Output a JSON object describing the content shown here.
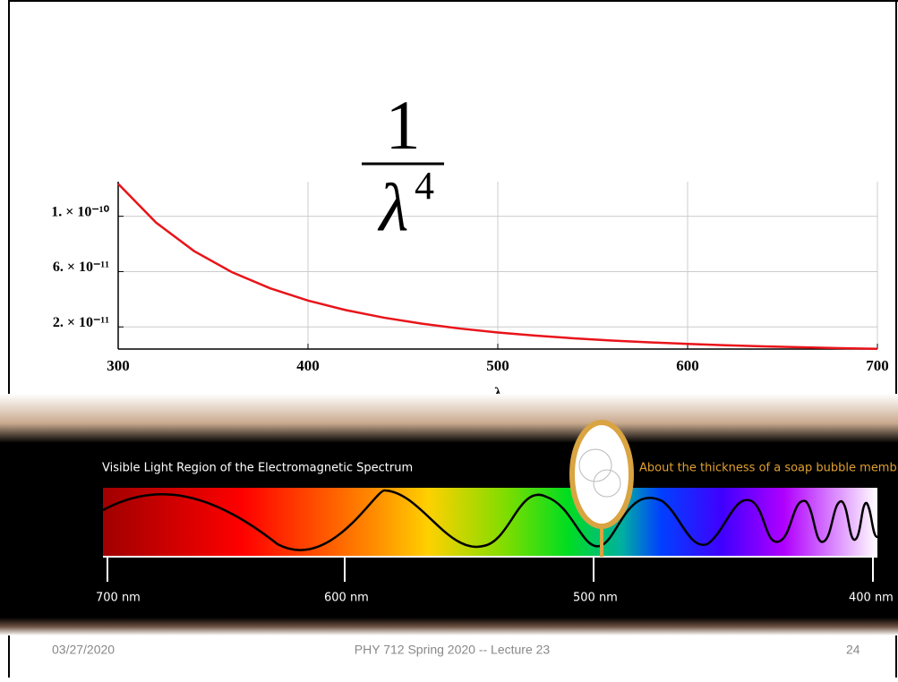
{
  "chart_data": {
    "type": "line",
    "formula": {
      "numerator": "1",
      "denominator": "λ",
      "exponent": "4"
    },
    "x_label": "λ",
    "x": [
      300,
      320,
      340,
      360,
      380,
      400,
      420,
      440,
      460,
      480,
      500,
      520,
      540,
      560,
      580,
      600,
      620,
      640,
      660,
      680,
      700
    ],
    "values": [
      1.2346e-10,
      9.537e-11,
      7.483e-11,
      5.954e-11,
      4.796e-11,
      3.906e-11,
      3.214e-11,
      2.668e-11,
      2.233e-11,
      1.884e-11,
      1.6e-11,
      1.368e-11,
      1.176e-11,
      1.017e-11,
      8.837e-12,
      7.716e-12,
      6.768e-12,
      5.96e-12,
      5.27e-12,
      4.677e-12,
      4.165e-12
    ],
    "color": "#e8141a",
    "xlim": [
      300,
      700
    ],
    "xticks": [
      300,
      400,
      500,
      600,
      700
    ],
    "ylim": [
      4e-12,
      1.25e-10
    ],
    "yticks": [
      {
        "value": 2e-11,
        "label": "2. × 10⁻¹¹"
      },
      {
        "value": 6e-11,
        "label": "6. × 10⁻¹¹"
      },
      {
        "value": 1e-10,
        "label": "1. × 10⁻¹⁰"
      }
    ],
    "grid": true
  },
  "spectrum": {
    "title": "Visible Light Region of the Electromagnetic Spectrum",
    "note": "About the thickness of a soap bubble membrane",
    "labels": [
      "700 nm",
      "600 nm",
      "500 nm",
      "400 nm"
    ]
  },
  "footer": {
    "date": "03/27/2020",
    "course": "PHY 712  Spring 2020 -- Lecture 23",
    "page": "24"
  }
}
